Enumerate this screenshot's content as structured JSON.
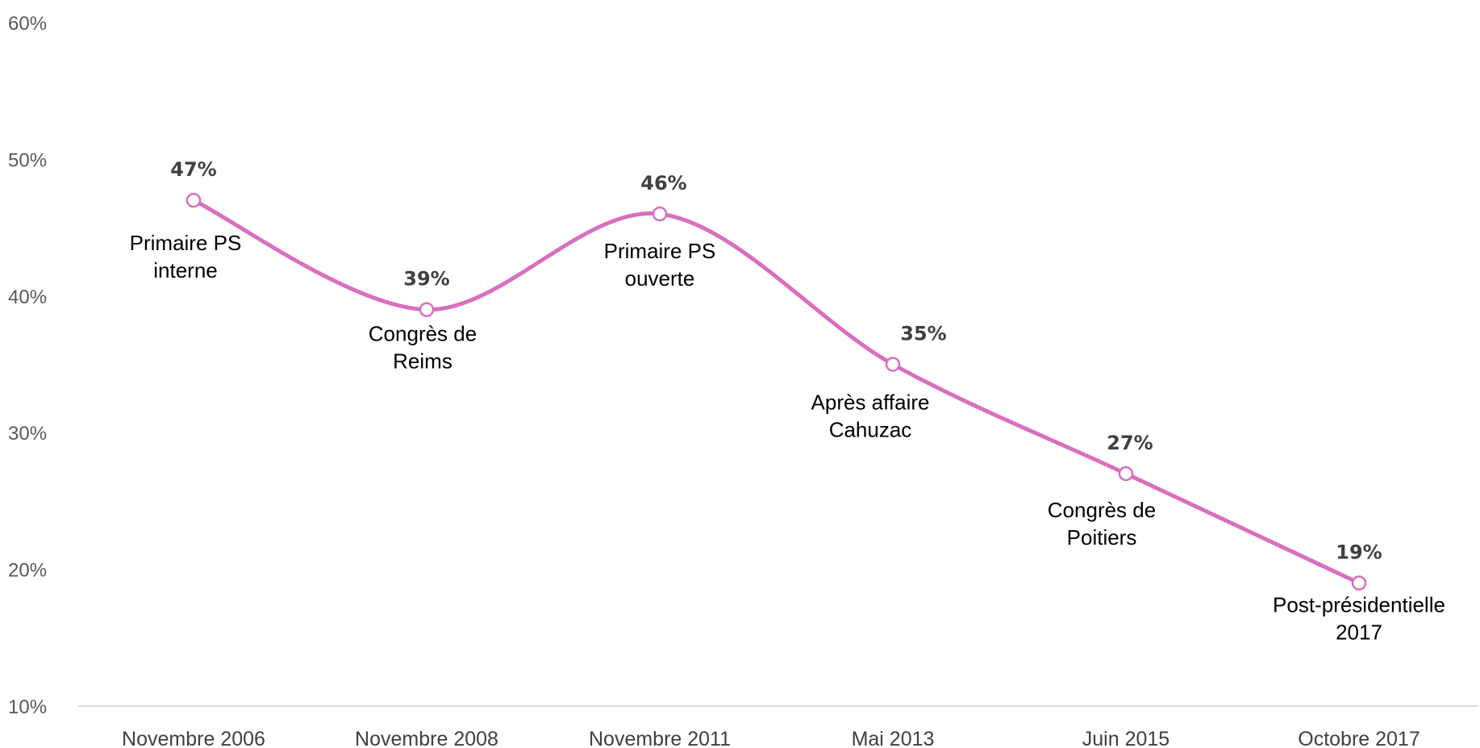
{
  "chart_data": {
    "type": "line",
    "title": "",
    "xlabel": "",
    "ylabel": "",
    "ylim": [
      10,
      60
    ],
    "y_ticks": [
      "10%",
      "20%",
      "30%",
      "40%",
      "50%",
      "60%"
    ],
    "grid": false,
    "smooth": true,
    "categories": [
      "Novembre 2006",
      "Novembre 2008",
      "Novembre 2011",
      "Mai 2013",
      "Juin 2015",
      "Octobre 2017"
    ],
    "series": [
      {
        "values": [
          47,
          39,
          46,
          35,
          27,
          19
        ],
        "data_labels": [
          "47%",
          "39%",
          "46%",
          "35%",
          "27%",
          "19%"
        ],
        "color": "#d86fbf"
      }
    ],
    "annotations": [
      [
        "Primaire PS",
        "interne"
      ],
      [
        "Congrès de",
        "Reims"
      ],
      [
        "Primaire PS",
        "ouverte"
      ],
      [
        "Après affaire",
        "Cahuzac"
      ],
      [
        "Congrès de",
        "Poitiers"
      ],
      [
        "Post-présidentielle",
        "2017"
      ]
    ],
    "colors": {
      "line": "#d86fbf",
      "axis": "#d9d9d9",
      "text": "#404040"
    }
  }
}
